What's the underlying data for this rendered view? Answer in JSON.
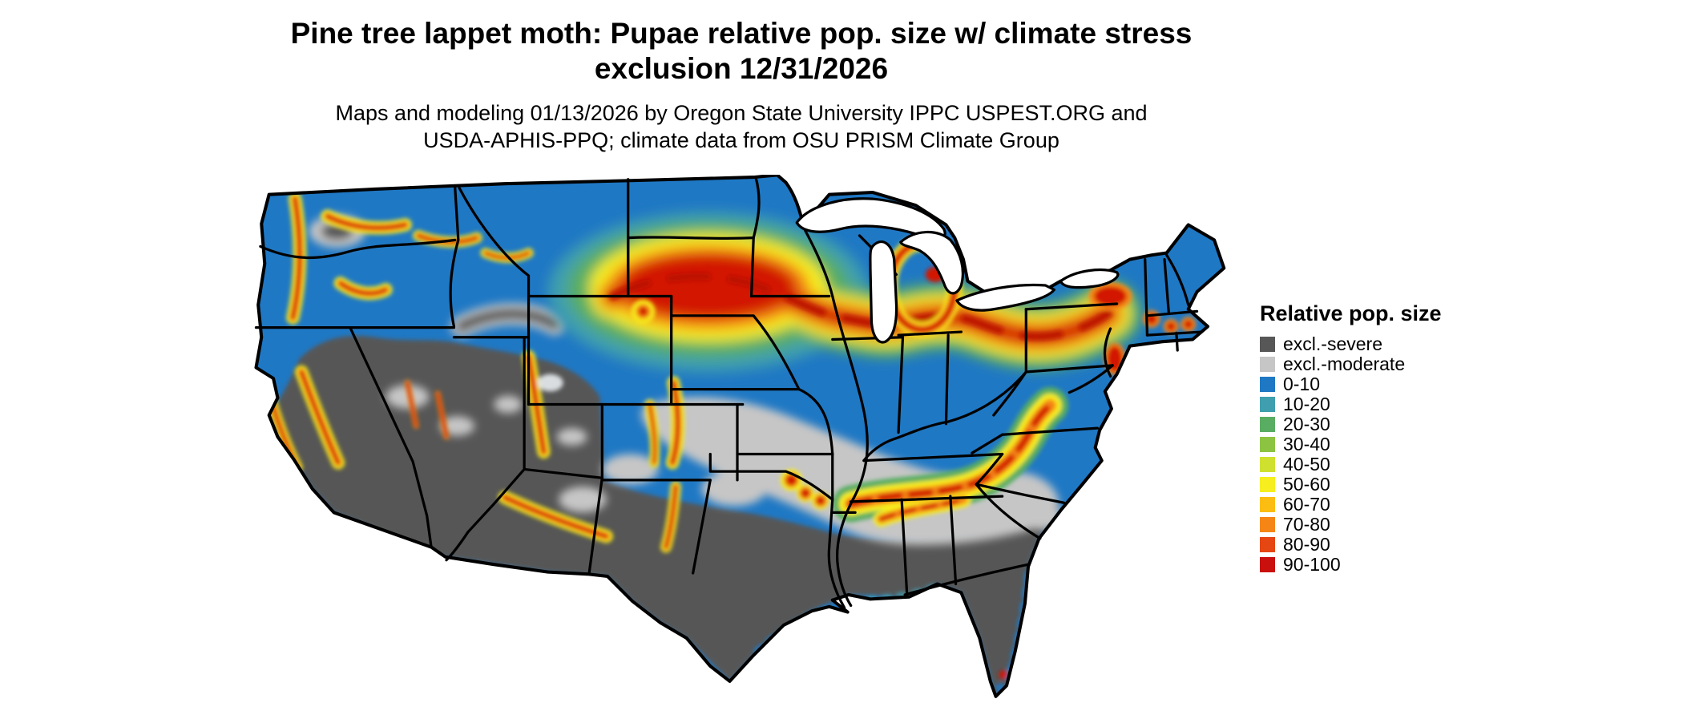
{
  "header": {
    "title_line1": "Pine tree lappet moth: Pupae relative pop. size w/ climate stress",
    "title_line2": "exclusion 12/31/2026",
    "subtitle_line1": "Maps and modeling 01/13/2026 by Oregon State University IPPC USPEST.ORG and",
    "subtitle_line2": "USDA-APHIS-PPQ; climate data from OSU PRISM Climate Group"
  },
  "legend": {
    "title": "Relative pop. size",
    "entries": [
      {
        "label": "excl.-severe",
        "color": "#575757"
      },
      {
        "label": "excl.-moderate",
        "color": "#c6c6c6"
      },
      {
        "label": "0-10",
        "color": "#1f78c4"
      },
      {
        "label": "10-20",
        "color": "#3f9fae"
      },
      {
        "label": "20-30",
        "color": "#59ad62"
      },
      {
        "label": "30-40",
        "color": "#8cc441"
      },
      {
        "label": "40-50",
        "color": "#cfe02e"
      },
      {
        "label": "50-60",
        "color": "#f6ee1f"
      },
      {
        "label": "60-70",
        "color": "#fbbd11"
      },
      {
        "label": "70-80",
        "color": "#f58616"
      },
      {
        "label": "80-90",
        "color": "#e64612"
      },
      {
        "label": "90-100",
        "color": "#c9100c"
      }
    ]
  },
  "map": {
    "area_shown": "contiguous United States",
    "base_fill": "#1f78c4",
    "excluded_severe_fill": "#575757",
    "excluded_moderate_fill": "#c6c6c6",
    "water_color": "#ffffff"
  }
}
